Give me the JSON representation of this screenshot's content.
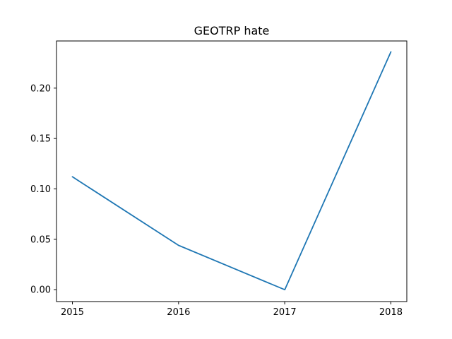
{
  "chart_data": {
    "type": "line",
    "title": "GEOTRP hate",
    "xlabel": "",
    "ylabel": "",
    "x": [
      2015,
      2016,
      2017,
      2018
    ],
    "x_tick_labels": [
      "2015",
      "2016",
      "2017",
      "2018"
    ],
    "y_ticks": [
      0.0,
      0.05,
      0.1,
      0.15,
      0.2
    ],
    "y_tick_labels": [
      "0.00",
      "0.05",
      "0.10",
      "0.15",
      "0.20"
    ],
    "xlim": [
      2014.85,
      2018.15
    ],
    "ylim": [
      -0.0118,
      0.2468
    ],
    "grid": false,
    "series": [
      {
        "values": [
          0.112,
          0.044,
          0.0,
          0.236
        ],
        "color": "#1f77b4"
      }
    ]
  }
}
